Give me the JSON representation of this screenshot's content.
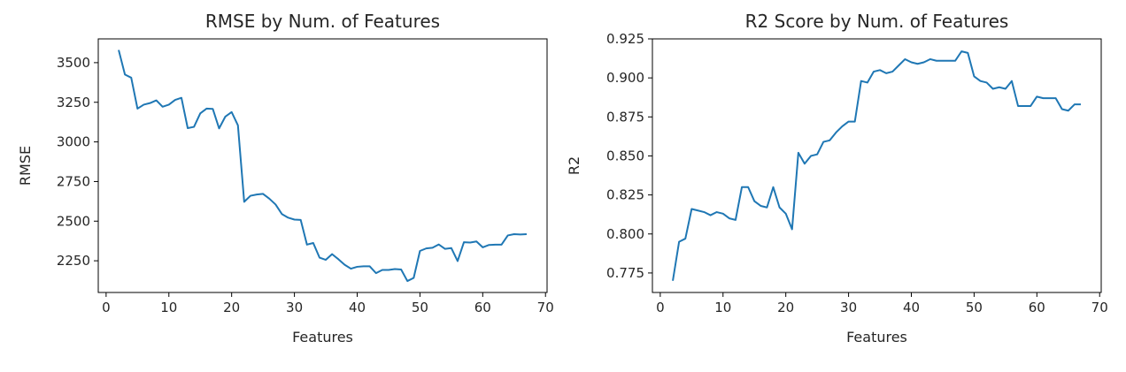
{
  "chart_data": [
    {
      "type": "line",
      "title": "RMSE by Num. of Features",
      "xlabel": "Features",
      "ylabel": "RMSE",
      "xlim": [
        -1.25,
        70.25
      ],
      "ylim": [
        2050,
        3650
      ],
      "xticks": [
        0,
        10,
        20,
        30,
        40,
        50,
        60,
        70
      ],
      "yticks": [
        2250,
        2500,
        2750,
        3000,
        3250,
        3500
      ],
      "grid": false,
      "color": "#1f77b4",
      "series": [
        {
          "x": [
            2,
            3,
            4,
            5,
            6,
            7,
            8,
            9,
            10,
            11,
            12,
            13,
            14,
            15,
            16,
            17,
            18,
            19,
            20,
            21,
            22,
            23,
            24,
            25,
            26,
            27,
            28,
            29,
            30,
            31,
            32,
            33,
            34,
            35,
            36,
            37,
            38,
            39,
            40,
            41,
            42,
            43,
            44,
            45,
            46,
            47,
            48,
            49,
            50,
            51,
            52,
            53,
            54,
            55,
            56,
            57,
            58,
            59,
            60,
            61,
            62,
            63,
            64,
            65,
            66,
            67
          ],
          "y": [
            3580,
            3425,
            3405,
            3210,
            3235,
            3245,
            3262,
            3222,
            3235,
            3265,
            3278,
            3087,
            3095,
            3180,
            3210,
            3208,
            3085,
            3160,
            3188,
            3105,
            2622,
            2660,
            2668,
            2672,
            2642,
            2605,
            2545,
            2522,
            2510,
            2508,
            2352,
            2362,
            2270,
            2256,
            2292,
            2260,
            2225,
            2200,
            2212,
            2215,
            2215,
            2172,
            2192,
            2192,
            2198,
            2195,
            2122,
            2142,
            2312,
            2328,
            2332,
            2353,
            2325,
            2330,
            2248,
            2367,
            2365,
            2372,
            2335,
            2350,
            2352,
            2352,
            2410,
            2418,
            2416,
            2418
          ]
        }
      ]
    },
    {
      "type": "line",
      "title": "R2 Score by Num. of Features",
      "xlabel": "Features",
      "ylabel": "R2",
      "xlim": [
        -1.25,
        70.25
      ],
      "ylim": [
        0.7625,
        0.925
      ],
      "xticks": [
        0,
        10,
        20,
        30,
        40,
        50,
        60,
        70
      ],
      "yticks": [
        0.775,
        0.8,
        0.825,
        0.85,
        0.875,
        0.9,
        0.925
      ],
      "yticklabels": [
        "0.775",
        "0.800",
        "0.825",
        "0.850",
        "0.875",
        "0.900",
        "0.925"
      ],
      "grid": false,
      "color": "#1f77b4",
      "series": [
        {
          "x": [
            2,
            3,
            4,
            5,
            6,
            7,
            8,
            9,
            10,
            11,
            12,
            13,
            14,
            15,
            16,
            17,
            18,
            19,
            20,
            21,
            22,
            23,
            24,
            25,
            26,
            27,
            28,
            29,
            30,
            31,
            32,
            33,
            34,
            35,
            36,
            37,
            38,
            39,
            40,
            41,
            42,
            43,
            44,
            45,
            46,
            47,
            48,
            49,
            50,
            51,
            52,
            53,
            54,
            55,
            56,
            57,
            58,
            59,
            60,
            61,
            62,
            63,
            64,
            65,
            66,
            67
          ],
          "y": [
            0.77,
            0.795,
            0.797,
            0.816,
            0.815,
            0.814,
            0.812,
            0.814,
            0.813,
            0.81,
            0.809,
            0.83,
            0.83,
            0.821,
            0.818,
            0.817,
            0.83,
            0.817,
            0.813,
            0.803,
            0.852,
            0.845,
            0.85,
            0.851,
            0.859,
            0.86,
            0.865,
            0.869,
            0.872,
            0.872,
            0.898,
            0.897,
            0.904,
            0.905,
            0.903,
            0.904,
            0.908,
            0.912,
            0.91,
            0.909,
            0.91,
            0.912,
            0.911,
            0.911,
            0.911,
            0.911,
            0.917,
            0.916,
            0.901,
            0.898,
            0.897,
            0.893,
            0.894,
            0.893,
            0.898,
            0.882,
            0.882,
            0.882,
            0.888,
            0.887,
            0.887,
            0.887,
            0.88,
            0.879,
            0.883,
            0.883
          ]
        }
      ]
    }
  ]
}
